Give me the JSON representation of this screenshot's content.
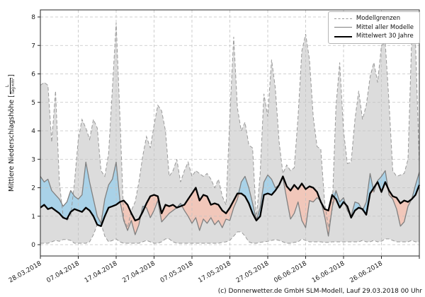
{
  "footer": {
    "credit": "(c) Donnerwetter.de GmbH SLM-Modell, Lauf 29.03.2018 00 Uhr"
  },
  "axis": {
    "ylabel_text": "Mittlere Niederschlagshöhe [",
    "ylabel_unit_numerator": "L",
    "ylabel_unit_denominator": "Tag×m²",
    "ylabel_close_bracket": "]"
  },
  "chart_data": {
    "type": "line",
    "title": "",
    "xlabel": "",
    "ylabel": "Mittlere Niederschlagshöhe [L/(Tag×m²)]",
    "grid": "dashed, both axes",
    "legend_position": "top-right",
    "ylim": [
      -0.4,
      8.25
    ],
    "yticks": [
      0,
      1,
      2,
      3,
      4,
      5,
      6,
      7,
      8
    ],
    "x_unit": "days since 28.03.2018",
    "x_range_days": [
      0,
      100
    ],
    "xticks": [
      {
        "day": 0,
        "label": "28.03.2018"
      },
      {
        "day": 10,
        "label": "07.04.2018"
      },
      {
        "day": 20,
        "label": "17.04.2018"
      },
      {
        "day": 30,
        "label": "27.04.2018"
      },
      {
        "day": 40,
        "label": "07.05.2018"
      },
      {
        "day": 50,
        "label": "17.05.2018"
      },
      {
        "day": 60,
        "label": "27.05.2018"
      },
      {
        "day": 70,
        "label": "06.06.2018"
      },
      {
        "day": 80,
        "label": "16.06.2018"
      },
      {
        "day": 90,
        "label": "26.06.2018"
      },
      {
        "day": 100,
        "label": ""
      }
    ],
    "legend": {
      "entries": [
        {
          "label": "Modellgrenzen",
          "style": "dashed-gray"
        },
        {
          "label": "Mittel aller Modelle",
          "style": "solid-gray"
        },
        {
          "label": "Mittelwert 30 Jahre",
          "style": "thick-black"
        }
      ]
    },
    "colors": {
      "band_fill": "#dcdcdc",
      "bound_line": "#999999",
      "above_fill": "#a9d2e8",
      "below_fill": "#f1c7ba",
      "mean_line": "#808080",
      "mean30_line": "#000000",
      "grid": "#c2c2c2",
      "spine": "#262626"
    },
    "series": [
      {
        "name": "Modellgrenzen (obere Grenze)",
        "role": "upper_bound",
        "values": [
          5.6,
          5.7,
          5.6,
          3.6,
          5.4,
          2.2,
          1.0,
          0.85,
          1.0,
          2.2,
          3.7,
          4.4,
          4.1,
          3.7,
          4.4,
          4.1,
          2.6,
          2.4,
          3.2,
          5.5,
          7.8,
          4.5,
          0.9,
          0.6,
          1.2,
          1.5,
          2.2,
          3.1,
          3.8,
          3.4,
          4.2,
          4.9,
          4.7,
          4.0,
          2.4,
          2.6,
          3.0,
          2.2,
          2.6,
          2.9,
          2.4,
          2.6,
          2.5,
          2.4,
          2.5,
          2.3,
          2.0,
          2.3,
          1.7,
          1.4,
          4.5,
          7.3,
          4.8,
          4.0,
          4.3,
          3.5,
          3.4,
          0.9,
          2.5,
          5.3,
          4.5,
          6.5,
          5.5,
          3.6,
          2.5,
          2.8,
          2.6,
          2.7,
          4.5,
          6.8,
          7.4,
          6.5,
          4.5,
          3.45,
          3.35,
          1.5,
          0.6,
          1.2,
          4.85,
          6.4,
          4.0,
          2.85,
          2.9,
          4.4,
          5.4,
          4.4,
          4.9,
          5.9,
          6.4,
          5.7,
          7.0,
          7.1,
          5.0,
          2.6,
          2.4,
          2.45,
          2.5,
          3.0,
          7.3,
          7.1,
          2.8
        ]
      },
      {
        "name": "Modellgrenzen (untere Grenze)",
        "role": "lower_bound",
        "values": [
          0.05,
          0.05,
          0.05,
          0.1,
          0.15,
          0.12,
          0.18,
          0.18,
          0.15,
          0.05,
          0.05,
          0.05,
          0.05,
          0.1,
          0.35,
          0.7,
          0.75,
          0.3,
          0.1,
          0.15,
          0.2,
          0.1,
          0.05,
          0.05,
          0.05,
          0.05,
          0.05,
          0.1,
          0.15,
          0.1,
          0.05,
          0.05,
          0.1,
          0.2,
          0.2,
          0.1,
          0.05,
          0.05,
          0.05,
          0.05,
          0.05,
          0.05,
          0.05,
          0.05,
          0.05,
          0.05,
          0.05,
          0.05,
          0.08,
          0.1,
          0.15,
          0.3,
          0.45,
          0.45,
          0.3,
          0.1,
          0.05,
          0.05,
          0.08,
          0.1,
          0.12,
          0.15,
          0.18,
          0.15,
          0.1,
          0.05,
          0.05,
          0.08,
          0.1,
          0.2,
          0.15,
          0.1,
          0.1,
          0.1,
          0.1,
          0.08,
          0.08,
          0.1,
          0.1,
          0.1,
          0.1,
          0.1,
          0.1,
          0.1,
          0.1,
          0.15,
          0.1,
          0.1,
          0.15,
          0.1,
          0.12,
          0.2,
          0.2,
          0.15,
          0.1,
          0.1,
          0.1,
          0.1,
          0.15,
          0.1,
          0.1
        ]
      },
      {
        "name": "Mittel aller Modelle",
        "role": "ensemble_mean",
        "values": [
          2.4,
          2.2,
          2.3,
          1.9,
          1.75,
          1.6,
          1.35,
          1.5,
          1.9,
          1.7,
          1.6,
          1.75,
          2.9,
          2.2,
          1.6,
          1.0,
          0.75,
          1.6,
          2.1,
          2.3,
          2.9,
          1.55,
          0.85,
          0.5,
          0.85,
          0.35,
          0.7,
          1.35,
          1.3,
          0.95,
          1.2,
          1.55,
          0.8,
          0.95,
          1.1,
          1.2,
          1.3,
          1.45,
          1.2,
          1.0,
          0.75,
          0.95,
          0.5,
          0.9,
          0.75,
          0.95,
          0.7,
          0.85,
          0.6,
          0.9,
          0.85,
          1.3,
          1.6,
          2.2,
          2.4,
          2.0,
          1.45,
          0.85,
          1.3,
          2.2,
          2.45,
          2.3,
          2.0,
          2.1,
          2.35,
          1.6,
          0.9,
          1.1,
          1.5,
          0.85,
          0.6,
          1.55,
          1.5,
          1.65,
          1.55,
          1.0,
          0.3,
          1.3,
          1.9,
          1.5,
          1.65,
          1.2,
          1.0,
          1.5,
          1.45,
          1.2,
          1.5,
          2.5,
          1.85,
          2.25,
          2.4,
          2.6,
          1.75,
          1.6,
          1.25,
          0.65,
          0.8,
          1.35,
          1.6,
          2.1,
          2.55
        ]
      },
      {
        "name": "Mittelwert 30 Jahre",
        "role": "climatological_mean",
        "values": [
          1.3,
          1.4,
          1.25,
          1.3,
          1.2,
          1.1,
          0.95,
          0.9,
          1.15,
          1.25,
          1.2,
          1.15,
          1.3,
          1.2,
          1.0,
          0.7,
          0.65,
          1.0,
          1.3,
          1.35,
          1.4,
          1.5,
          1.55,
          1.4,
          1.1,
          0.85,
          0.9,
          1.15,
          1.45,
          1.7,
          1.75,
          1.7,
          1.1,
          1.4,
          1.35,
          1.4,
          1.3,
          1.35,
          1.4,
          1.6,
          1.8,
          2.0,
          1.55,
          1.75,
          1.7,
          1.4,
          1.45,
          1.4,
          1.2,
          1.1,
          1.3,
          1.55,
          1.8,
          1.8,
          1.7,
          1.45,
          1.1,
          0.85,
          1.0,
          1.75,
          1.8,
          1.75,
          1.9,
          2.1,
          2.4,
          2.05,
          1.9,
          2.1,
          1.95,
          2.15,
          1.95,
          2.05,
          2.0,
          1.85,
          1.5,
          1.25,
          1.2,
          1.75,
          1.6,
          1.3,
          1.5,
          1.35,
          0.95,
          1.2,
          1.3,
          1.25,
          1.05,
          1.8,
          2.0,
          2.2,
          1.85,
          2.2,
          1.9,
          1.7,
          1.65,
          1.45,
          1.55,
          1.5,
          1.6,
          1.75,
          2.1
        ]
      }
    ]
  }
}
